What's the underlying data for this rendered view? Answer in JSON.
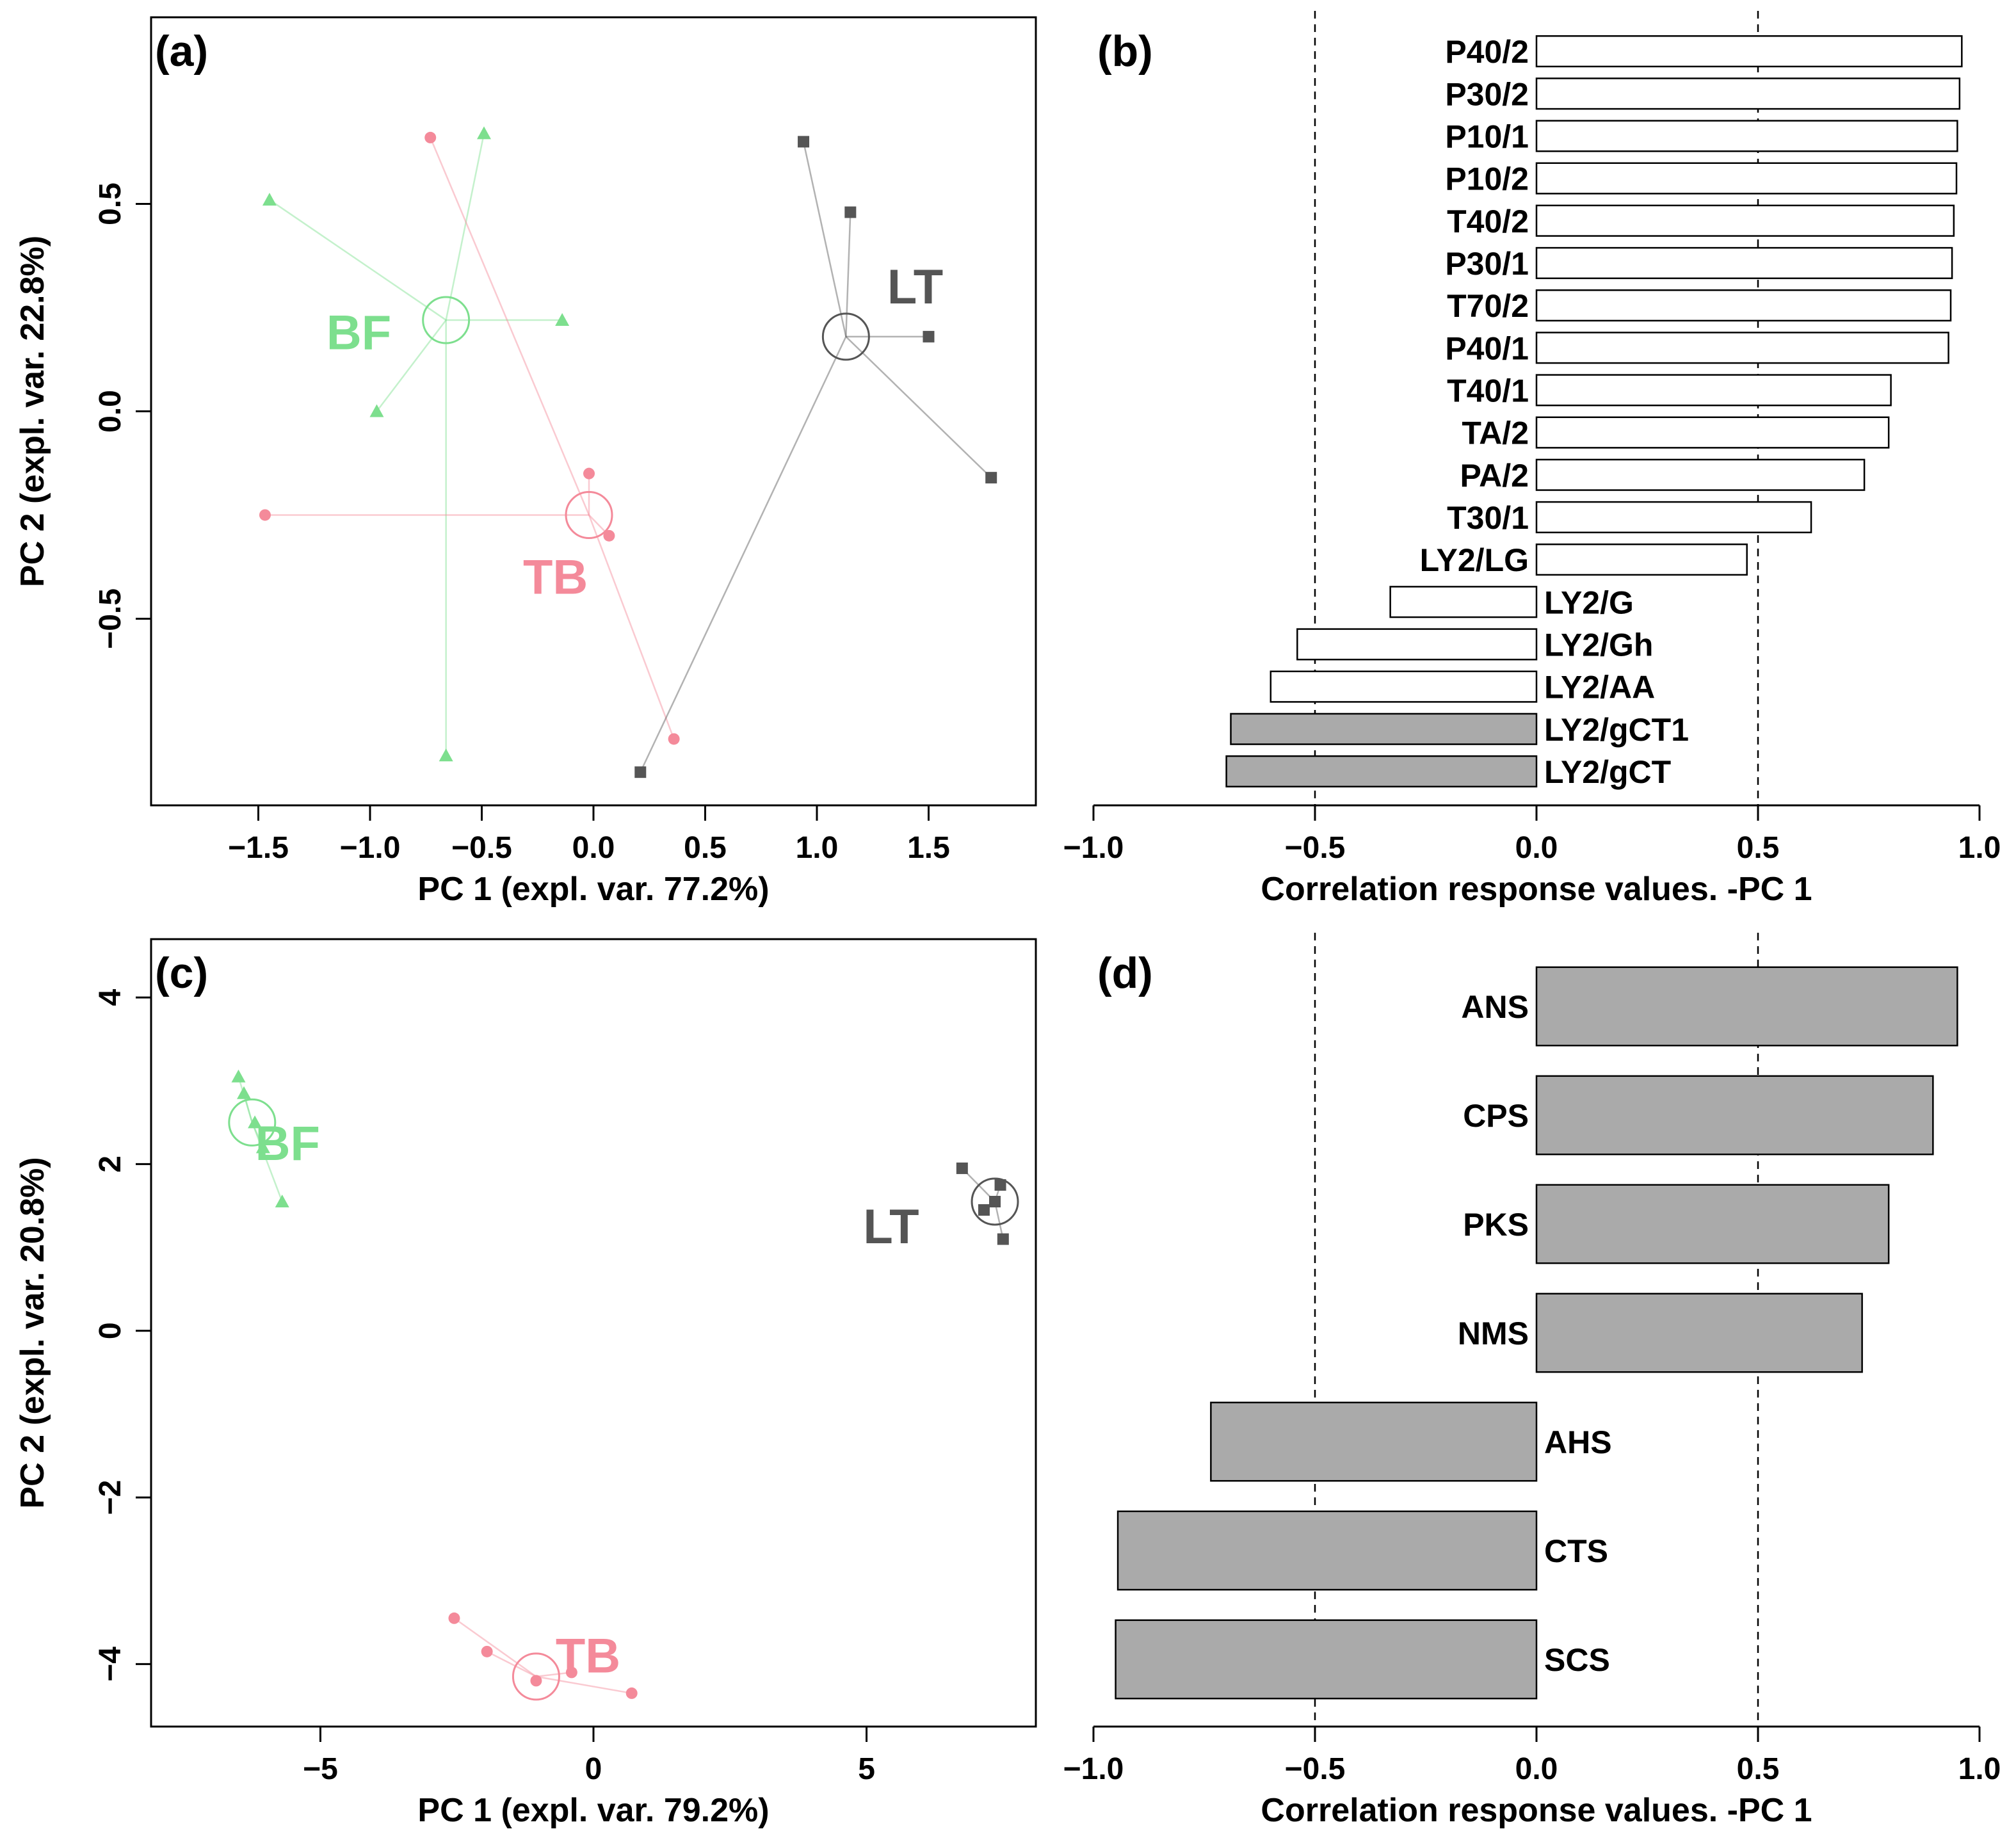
{
  "colors": {
    "BF": "#7ddf8e",
    "TB": "#f48a9a",
    "LT": "#555555",
    "bar_fill": "#aaaaaa",
    "bar_open": "#ffffff"
  },
  "chart_data": [
    {
      "id": "a",
      "panel_label": "(a)",
      "type": "scatter",
      "xlabel": "PC 1 (expl. var. 77.2%)",
      "ylabel": "PC 2 (expl. var. 22.8%)",
      "xlim": [
        -1.98,
        1.98
      ],
      "ylim": [
        -0.95,
        0.95
      ],
      "xticks": [
        -1.5,
        -1.0,
        -0.5,
        0.0,
        0.5,
        1.0,
        1.5
      ],
      "xtick_labels": [
        "−1.5",
        "−1.0",
        "−0.5",
        "0.0",
        "0.5",
        "1.0",
        "1.5"
      ],
      "yticks": [
        -0.5,
        0.0,
        0.5
      ],
      "ytick_labels": [
        "−0.5",
        "0.0",
        "0.5"
      ],
      "groups": [
        {
          "name": "BF",
          "label": "BF",
          "marker": "triangle",
          "centroid": [
            -0.66,
            0.22
          ],
          "label_at": [
            -1.05,
            0.19
          ],
          "points": [
            [
              -0.49,
              0.67
            ],
            [
              -1.45,
              0.51
            ],
            [
              -0.14,
              0.22
            ],
            [
              -0.97,
              0.0
            ],
            [
              -0.66,
              -0.83
            ]
          ]
        },
        {
          "name": "TB",
          "label": "TB",
          "marker": "circle",
          "centroid": [
            -0.02,
            -0.25
          ],
          "label_at": [
            -0.17,
            -0.4
          ],
          "points": [
            [
              -0.73,
              0.66
            ],
            [
              -0.02,
              -0.15
            ],
            [
              0.07,
              -0.3
            ],
            [
              -1.47,
              -0.25
            ],
            [
              0.36,
              -0.79
            ]
          ]
        },
        {
          "name": "LT",
          "label": "LT",
          "marker": "square",
          "centroid": [
            1.13,
            0.18
          ],
          "label_at": [
            1.44,
            0.3
          ],
          "points": [
            [
              0.94,
              0.65
            ],
            [
              1.15,
              0.48
            ],
            [
              1.5,
              0.18
            ],
            [
              1.78,
              -0.16
            ],
            [
              0.21,
              -0.87
            ]
          ]
        }
      ]
    },
    {
      "id": "b",
      "panel_label": "(b)",
      "type": "bar",
      "orientation": "horizontal",
      "xlabel": "Correlation response values. -PC 1",
      "xlim": [
        -1.0,
        1.0
      ],
      "xticks": [
        -1.0,
        -0.5,
        0.0,
        0.5,
        1.0
      ],
      "xtick_labels": [
        "−1.0",
        "−0.5",
        "0.0",
        "0.5",
        "1.0"
      ],
      "reference_lines": [
        -0.5,
        0.5
      ],
      "categories": [
        "P40/2",
        "P30/2",
        "P10/1",
        "P10/2",
        "T40/2",
        "P30/1",
        "T70/2",
        "P40/1",
        "T40/1",
        "TA/2",
        "PA/2",
        "T30/1",
        "LY2/LG",
        "LY2/G",
        "LY2/Gh",
        "LY2/AA",
        "LY2/gCT1",
        "LY2/gCT"
      ],
      "values": [
        0.96,
        0.955,
        0.95,
        0.948,
        0.942,
        0.938,
        0.935,
        0.93,
        0.8,
        0.795,
        0.74,
        0.62,
        0.475,
        -0.33,
        -0.54,
        -0.6,
        -0.69,
        -0.7
      ],
      "filled": [
        false,
        false,
        false,
        false,
        false,
        false,
        false,
        false,
        false,
        false,
        false,
        false,
        false,
        false,
        false,
        false,
        true,
        true
      ]
    },
    {
      "id": "c",
      "panel_label": "(c)",
      "type": "scatter",
      "xlabel": "PC 1 (expl. var. 79.2%)",
      "ylabel": "PC 2 (expl. var. 20.8%)",
      "xlim": [
        -8.1,
        8.1
      ],
      "ylim": [
        -4.75,
        4.7
      ],
      "xticks": [
        -5,
        0,
        5
      ],
      "xtick_labels": [
        "−5",
        "0",
        "5"
      ],
      "yticks": [
        -4,
        -2,
        0,
        2,
        4
      ],
      "ytick_labels": [
        "−4",
        "−2",
        "0",
        "2",
        "4"
      ],
      "groups": [
        {
          "name": "BF",
          "label": "BF",
          "marker": "triangle",
          "centroid": [
            -6.25,
            2.5
          ],
          "label_at": [
            -5.6,
            2.25
          ],
          "points": [
            [
              -6.5,
              3.05
            ],
            [
              -6.4,
              2.85
            ],
            [
              -6.2,
              2.5
            ],
            [
              -6.05,
              2.2
            ],
            [
              -5.7,
              1.55
            ]
          ]
        },
        {
          "name": "TB",
          "label": "TB",
          "marker": "circle",
          "centroid": [
            -1.05,
            -4.15
          ],
          "label_at": [
            -0.1,
            -3.9
          ],
          "points": [
            [
              -2.55,
              -3.45
            ],
            [
              -1.95,
              -3.85
            ],
            [
              -1.05,
              -4.2
            ],
            [
              -0.4,
              -4.1
            ],
            [
              0.7,
              -4.35
            ]
          ]
        },
        {
          "name": "LT",
          "label": "LT",
          "marker": "square",
          "centroid": [
            7.35,
            1.55
          ],
          "label_at": [
            5.45,
            1.25
          ],
          "points": [
            [
              6.75,
              1.95
            ],
            [
              7.45,
              1.75
            ],
            [
              7.35,
              1.55
            ],
            [
              7.15,
              1.45
            ],
            [
              7.5,
              1.1
            ]
          ]
        }
      ]
    },
    {
      "id": "d",
      "panel_label": "(d)",
      "type": "bar",
      "orientation": "horizontal",
      "xlabel": "Correlation response values. -PC 1",
      "xlim": [
        -1.0,
        1.0
      ],
      "xticks": [
        -1.0,
        -0.5,
        0.0,
        0.5,
        1.0
      ],
      "xtick_labels": [
        "−1.0",
        "−0.5",
        "0.0",
        "0.5",
        "1.0"
      ],
      "reference_lines": [
        -0.5,
        0.5
      ],
      "categories": [
        "ANS",
        "CPS",
        "PKS",
        "NMS",
        "AHS",
        "CTS",
        "SCS"
      ],
      "values": [
        0.95,
        0.895,
        0.795,
        0.735,
        -0.735,
        -0.945,
        -0.95
      ],
      "filled": [
        true,
        true,
        true,
        true,
        true,
        true,
        true
      ]
    }
  ]
}
